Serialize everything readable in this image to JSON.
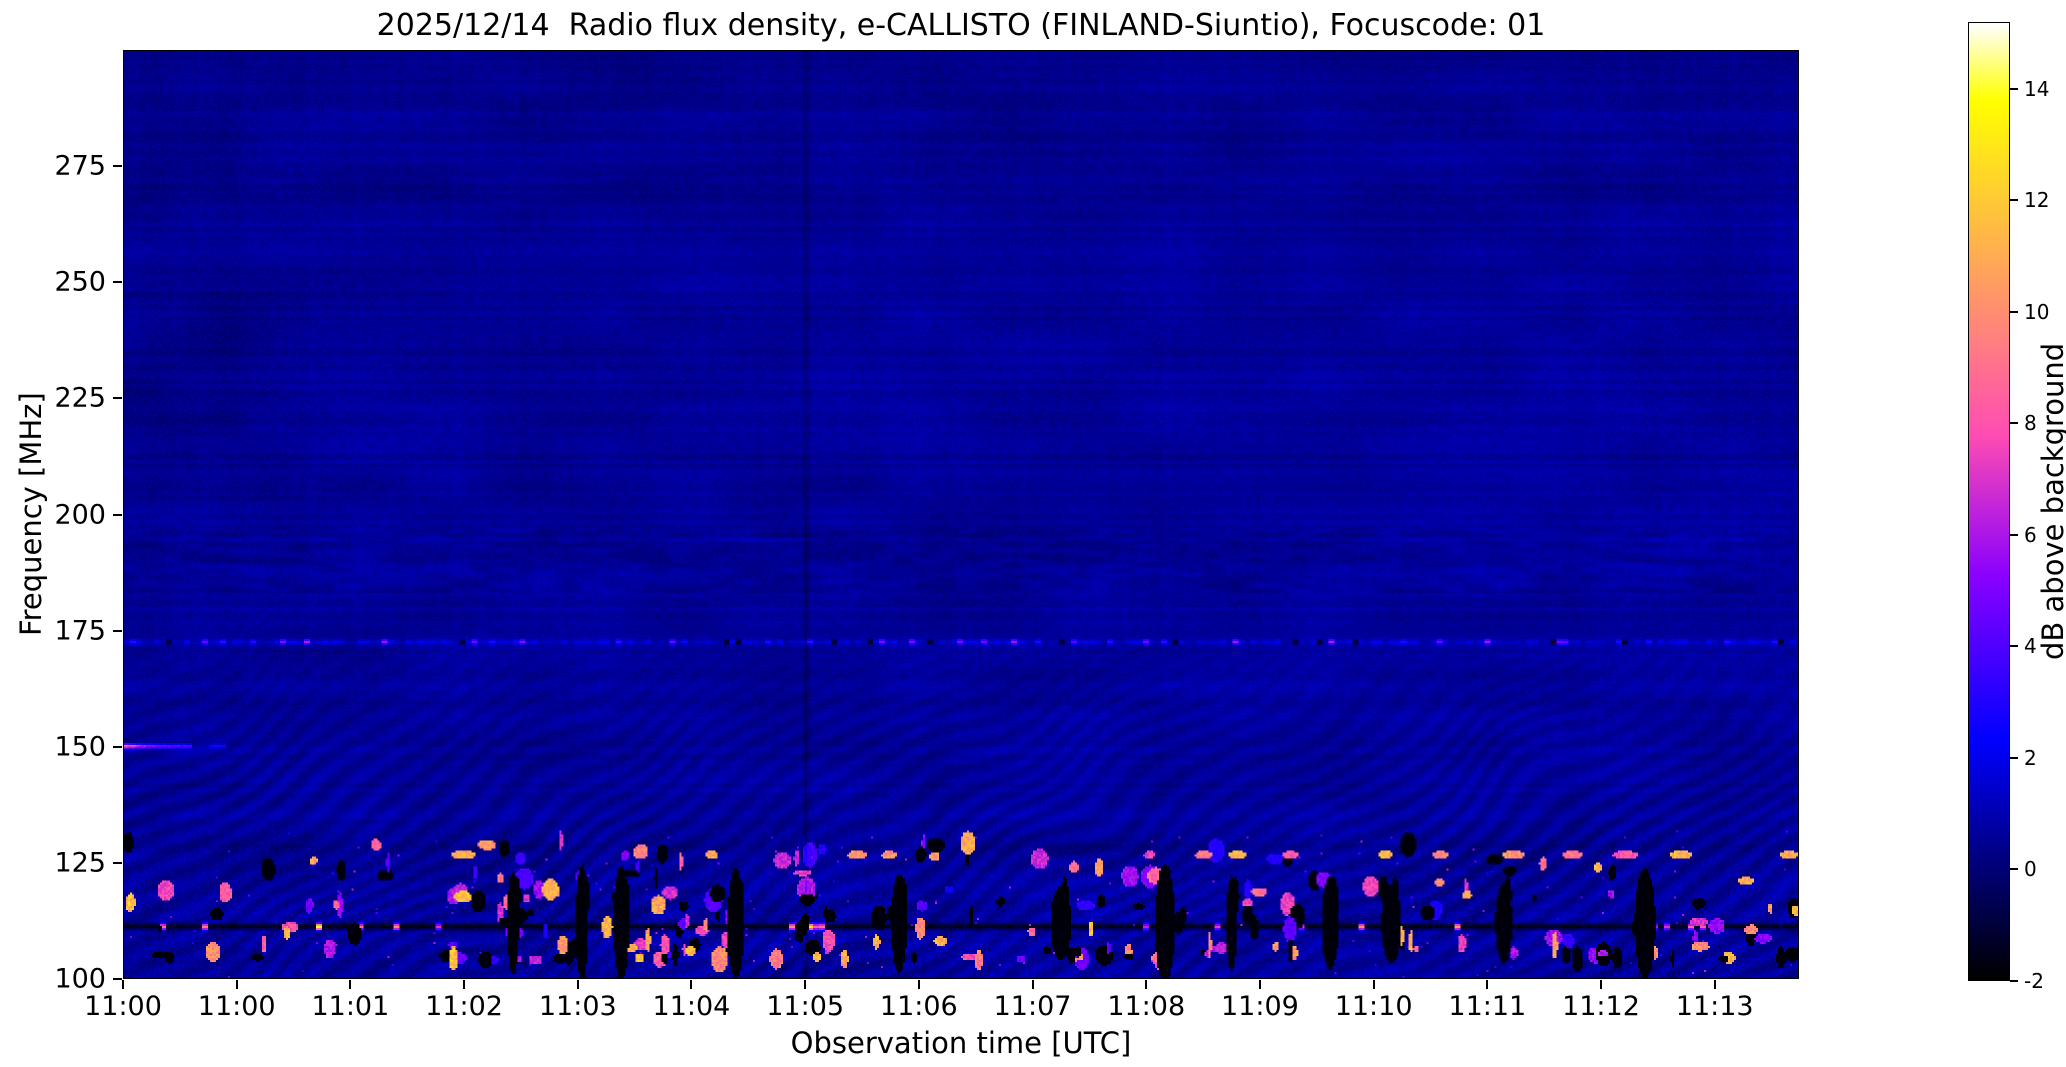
{
  "figure": {
    "background": "#ffffff"
  },
  "chart_data": {
    "type": "heatmap",
    "title": "2025/12/14  Radio flux density, e-CALLISTO (FINLAND-Siuntio), Focuscode: 01",
    "date": "2025/12/14",
    "station": "FINLAND-Siuntio",
    "focuscode": "01",
    "xlabel": "Observation time [UTC]",
    "ylabel": "Frequency [MHz]",
    "x_ticks": [
      "11:00",
      "11:00",
      "11:01",
      "11:02",
      "11:03",
      "11:04",
      "11:05",
      "11:06",
      "11:07",
      "11:08",
      "11:09",
      "11:10",
      "11:11",
      "11:12",
      "11:13"
    ],
    "x_tick_interval_seconds": 57.66,
    "x_range_seconds": [
      0,
      850
    ],
    "y_ticks": [
      100,
      125,
      150,
      175,
      200,
      225,
      250,
      275
    ],
    "y_range_mhz": [
      100,
      300
    ],
    "grid": false,
    "background_level_db": 0.6,
    "colorbar": {
      "label": "dB above background",
      "ticks": [
        -2,
        0,
        2,
        4,
        6,
        8,
        10,
        12,
        14
      ],
      "range": [
        -2,
        15.2
      ],
      "colormap": "gnuplot2",
      "stops": [
        {
          "x": 0.0,
          "c": "#000000"
        },
        {
          "x": 0.05,
          "c": "#000033"
        },
        {
          "x": 0.1,
          "c": "#000066"
        },
        {
          "x": 0.15,
          "c": "#000099"
        },
        {
          "x": 0.2,
          "c": "#0000cc"
        },
        {
          "x": 0.25,
          "c": "#0000ff"
        },
        {
          "x": 0.3,
          "c": "#2800ff"
        },
        {
          "x": 0.35,
          "c": "#5000ff"
        },
        {
          "x": 0.4,
          "c": "#7800ff"
        },
        {
          "x": 0.42,
          "c": "#8800ff"
        },
        {
          "x": 0.46,
          "c": "#a814eb"
        },
        {
          "x": 0.5,
          "c": "#c729d6"
        },
        {
          "x": 0.55,
          "c": "#ef42bd"
        },
        {
          "x": 0.57,
          "c": "#ff4db3"
        },
        {
          "x": 0.62,
          "c": "#ff6699"
        },
        {
          "x": 0.67,
          "c": "#ff8080"
        },
        {
          "x": 0.72,
          "c": "#ff9966"
        },
        {
          "x": 0.77,
          "c": "#ffb34d"
        },
        {
          "x": 0.82,
          "c": "#ffcc33"
        },
        {
          "x": 0.87,
          "c": "#ffe61a"
        },
        {
          "x": 0.92,
          "c": "#ffff00"
        },
        {
          "x": 0.96,
          "c": "#ffff80"
        },
        {
          "x": 1.0,
          "c": "#ffffff"
        }
      ]
    },
    "features": [
      {
        "name": "interference-ripples",
        "description": "wavy moire interference pattern in lower band",
        "freq_range_mhz": [
          100,
          178
        ]
      },
      {
        "name": "rfi-line-172",
        "freq_mhz": 172.5,
        "description": "horizontal RFI line with intermittent bright and dark dashes"
      },
      {
        "name": "rfi-line-111",
        "freq_mhz": 111,
        "level_db": -2,
        "description": "dark horizontal line with sporadic bright white bursts"
      },
      {
        "name": "bright-burst-150",
        "freq_mhz": 150,
        "time_range_s": [
          0,
          34
        ],
        "peak_db": 9.5,
        "description": "bright burst at start of recording"
      },
      {
        "name": "sporadic-rfi",
        "freq_range_mhz": [
          104,
          130
        ],
        "time_clusters_s": [
          [
            165,
            235
          ],
          [
            255,
            310
          ],
          [
            340,
            430
          ],
          [
            460,
            610
          ],
          [
            630,
            860
          ]
        ],
        "description": "scattered bright and black RFI blobs"
      },
      {
        "name": "bright-dashes-127",
        "freq_mhz": 127,
        "times_s": [
          172,
          298,
          372,
          388,
          520,
          548,
          565,
          592,
          640,
          668,
          705,
          735,
          762,
          790,
          845
        ],
        "peak_db": 13
      },
      {
        "name": "black-dropouts",
        "times_s": [
          197,
          232,
          252,
          310,
          393,
          475,
          528,
          562,
          612,
          643,
          700,
          772
        ],
        "freq_center_mhz": 112
      },
      {
        "name": "dark-vertical-line",
        "time_s": 346
      },
      {
        "name": "dark-band-top",
        "freq_range_mhz": [
          263,
          288
        ]
      },
      {
        "name": "mottled-band",
        "freq_range_mhz": [
          183,
          197
        ]
      },
      {
        "name": "dark-cloud",
        "freq_range_mhz": [
          203,
          248
        ],
        "time_range_s": [
          0,
          110
        ]
      },
      {
        "name": "faint-dark-line",
        "freq_mhz": 128.3
      }
    ]
  }
}
